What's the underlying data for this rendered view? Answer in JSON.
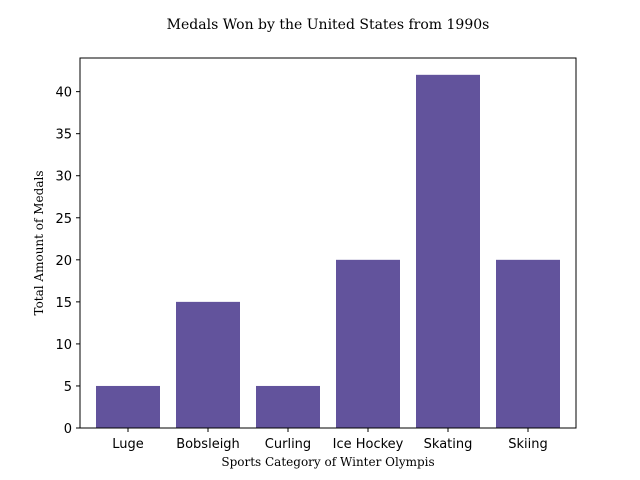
{
  "chart_data": {
    "type": "bar",
    "title": "Medals Won by the United States from 1990s",
    "xlabel": "Sports Category of Winter Olympis",
    "ylabel": "Total Amount of Medals",
    "categories": [
      "Luge",
      "Bobsleigh",
      "Curling",
      "Ice Hockey",
      "Skating",
      "Skiing"
    ],
    "values": [
      5,
      15,
      5,
      20,
      42,
      20
    ],
    "ylim": [
      0,
      44
    ],
    "yticks": [
      0,
      5,
      10,
      15,
      20,
      25,
      30,
      35,
      40
    ],
    "bar_color": "#62539c",
    "grid": false,
    "legend": "none"
  }
}
